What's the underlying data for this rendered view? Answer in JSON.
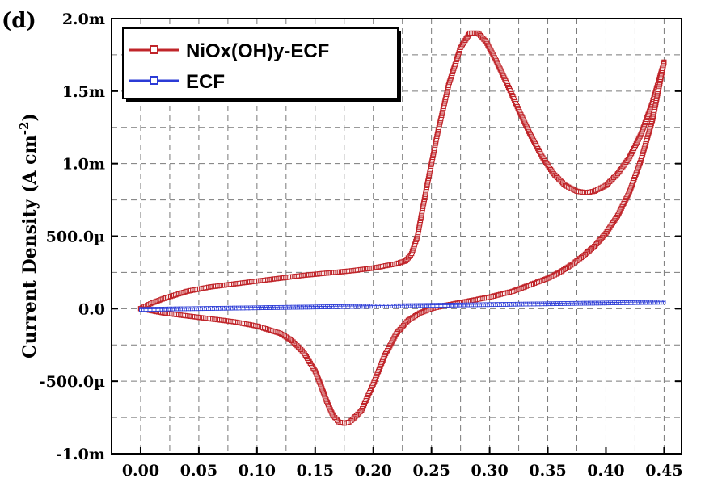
{
  "panel_label": "(d)",
  "chart_data": {
    "type": "line",
    "title": "",
    "xlabel": "",
    "ylabel": "Current Density (A cm",
    "ylabel_sup": "-2",
    "ylabel_close": ")",
    "xlim": [
      -0.025,
      0.465
    ],
    "ylim": [
      -1.0,
      2.0
    ],
    "x_ticks": [
      {
        "v": 0.0,
        "label": "0.00"
      },
      {
        "v": 0.05,
        "label": "0.05"
      },
      {
        "v": 0.1,
        "label": "0.10"
      },
      {
        "v": 0.15,
        "label": "0.15"
      },
      {
        "v": 0.2,
        "label": "0.20"
      },
      {
        "v": 0.25,
        "label": "0.25"
      },
      {
        "v": 0.3,
        "label": "0.30"
      },
      {
        "v": 0.35,
        "label": "0.35"
      },
      {
        "v": 0.4,
        "label": "0.40"
      },
      {
        "v": 0.45,
        "label": "0.45"
      }
    ],
    "y_ticks": [
      {
        "v": -1.0,
        "label": "-1.0m"
      },
      {
        "v": -0.5,
        "label": "-500.0µ"
      },
      {
        "v": 0.0,
        "label": "0.0"
      },
      {
        "v": 0.5,
        "label": "500.0µ"
      },
      {
        "v": 1.0,
        "label": "1.0m"
      },
      {
        "v": 1.5,
        "label": "1.5m"
      },
      {
        "v": 2.0,
        "label": "2.0m"
      }
    ],
    "y_unit_note": "y values in mA cm^-2 (tick labels use m = 1e-3, µ = 1e-6 A cm^-2)",
    "grid": true,
    "legend_position": "top-left",
    "series": [
      {
        "name": "NiOx(OH)y-ECF",
        "color": "#c0252a",
        "marker": "open-square",
        "anodic_x": [
          0.0,
          0.01,
          0.02,
          0.04,
          0.06,
          0.08,
          0.1,
          0.12,
          0.14,
          0.16,
          0.18,
          0.2,
          0.22,
          0.228,
          0.233,
          0.238,
          0.245,
          0.255,
          0.265,
          0.275,
          0.283,
          0.29,
          0.297,
          0.305,
          0.315,
          0.325,
          0.335,
          0.345,
          0.355,
          0.365,
          0.375,
          0.383,
          0.39,
          0.4,
          0.41,
          0.42,
          0.43,
          0.44,
          0.45
        ],
        "anodic_y": [
          0.0,
          0.04,
          0.07,
          0.12,
          0.15,
          0.17,
          0.19,
          0.21,
          0.23,
          0.245,
          0.26,
          0.28,
          0.31,
          0.33,
          0.38,
          0.5,
          0.8,
          1.2,
          1.55,
          1.8,
          1.9,
          1.9,
          1.84,
          1.72,
          1.55,
          1.37,
          1.2,
          1.05,
          0.93,
          0.85,
          0.81,
          0.8,
          0.81,
          0.85,
          0.93,
          1.04,
          1.2,
          1.42,
          1.7
        ],
        "cathodic_x": [
          0.45,
          0.44,
          0.43,
          0.42,
          0.41,
          0.4,
          0.39,
          0.38,
          0.37,
          0.36,
          0.35,
          0.34,
          0.32,
          0.3,
          0.28,
          0.26,
          0.25,
          0.24,
          0.23,
          0.22,
          0.21,
          0.2,
          0.19,
          0.18,
          0.175,
          0.17,
          0.165,
          0.16,
          0.155,
          0.15,
          0.14,
          0.13,
          0.12,
          0.1,
          0.08,
          0.06,
          0.04,
          0.02,
          0.0
        ],
        "cathodic_y": [
          1.7,
          1.3,
          1.02,
          0.8,
          0.64,
          0.52,
          0.43,
          0.36,
          0.3,
          0.25,
          0.21,
          0.18,
          0.12,
          0.08,
          0.05,
          0.02,
          0.0,
          -0.03,
          -0.08,
          -0.17,
          -0.32,
          -0.52,
          -0.7,
          -0.78,
          -0.79,
          -0.78,
          -0.73,
          -0.64,
          -0.53,
          -0.43,
          -0.3,
          -0.22,
          -0.17,
          -0.12,
          -0.09,
          -0.07,
          -0.05,
          -0.03,
          0.0
        ]
      },
      {
        "name": "ECF",
        "color": "#2b3bd6",
        "marker": "open-square",
        "anodic_x": [
          0.0,
          0.45
        ],
        "anodic_y": [
          0.0,
          0.05
        ],
        "cathodic_x": [
          0.45,
          0.0
        ],
        "cathodic_y": [
          0.04,
          -0.01
        ]
      }
    ]
  }
}
